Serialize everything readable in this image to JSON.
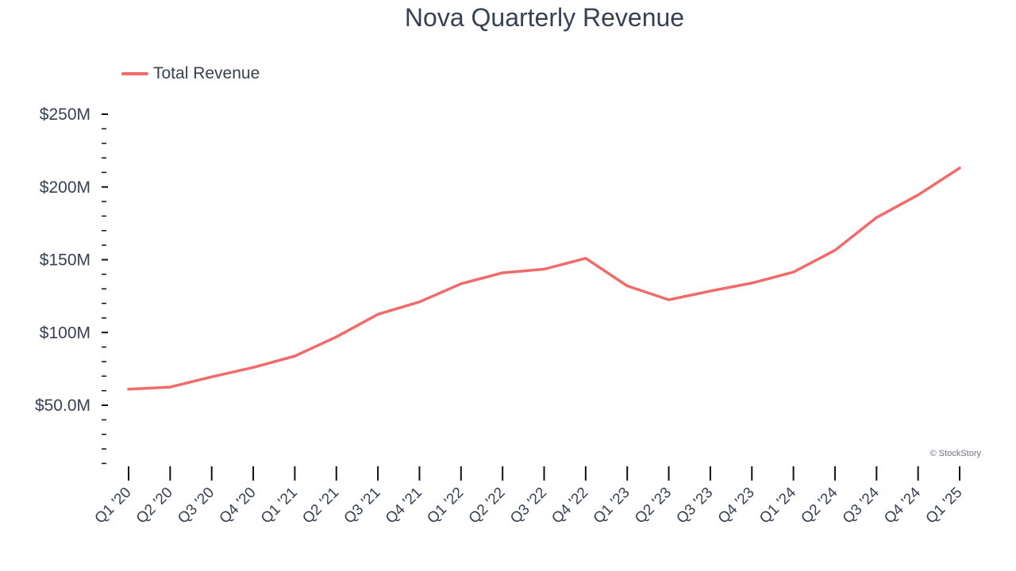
{
  "chart_data": {
    "type": "line",
    "title": "Nova Quarterly Revenue",
    "xlabel": "",
    "ylabel": "",
    "categories": [
      "Q1 '20",
      "Q2 '20",
      "Q3 '20",
      "Q4 '20",
      "Q1 '21",
      "Q2 '21",
      "Q3 '21",
      "Q4 '21",
      "Q1 '22",
      "Q2 '22",
      "Q3 '22",
      "Q4 '22",
      "Q1 '23",
      "Q2 '23",
      "Q3 '23",
      "Q4 '23",
      "Q1 '24",
      "Q2 '24",
      "Q3 '24",
      "Q4 '24",
      "Q1 '25"
    ],
    "series": [
      {
        "name": "Total Revenue",
        "color": "#f26b6b",
        "values": [
          61.0,
          62.5,
          69.5,
          76.0,
          83.8,
          97.0,
          112.5,
          121.0,
          133.5,
          141.0,
          143.5,
          151.0,
          132.0,
          122.5,
          128.5,
          134.0,
          141.5,
          156.5,
          179.0,
          194.5,
          213.0
        ]
      }
    ],
    "ylim": [
      10,
      255
    ],
    "yticks": [
      50,
      100,
      150,
      200,
      250
    ],
    "ytick_labels": [
      "$50.0M",
      "$100M",
      "$150M",
      "$200M",
      "$250M"
    ],
    "minor_tick_step": 10,
    "grid": false,
    "legend_position": "top-left"
  },
  "watermark": "© StockStory"
}
